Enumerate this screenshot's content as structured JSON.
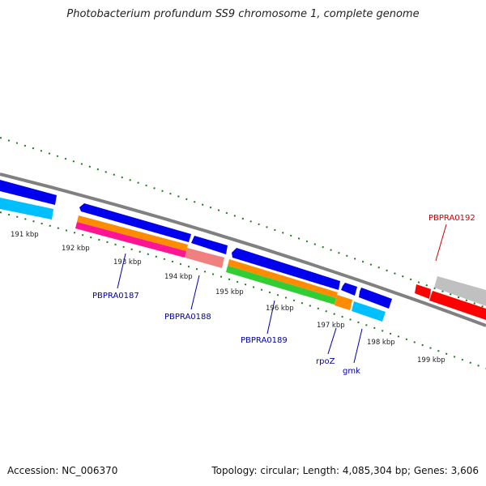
{
  "title": "Photobacterium profundum SS9 chromosome 1, complete genome",
  "footer": {
    "accession": "Accession: NC_006370",
    "summary": "Topology: circular; Length: 4,085,304 bp; Genes: 3,606"
  },
  "ticks": [
    {
      "kbp": 191,
      "label": "191 kbp"
    },
    {
      "kbp": 192,
      "label": "192 kbp"
    },
    {
      "kbp": 193,
      "label": "193 kbp"
    },
    {
      "kbp": 194,
      "label": "194 kbp"
    },
    {
      "kbp": 195,
      "label": "195 kbp"
    },
    {
      "kbp": 196,
      "label": "196 kbp"
    },
    {
      "kbp": 197,
      "label": "197 kbp"
    },
    {
      "kbp": 198,
      "label": "198 kbp"
    },
    {
      "kbp": 199,
      "label": "199 kbp"
    }
  ],
  "gene_labels": [
    {
      "name": "PBPRA0187",
      "color": "#0000aa"
    },
    {
      "name": "PBPRA0188",
      "color": "#0000aa"
    },
    {
      "name": "PBPRA0189",
      "color": "#0000aa"
    },
    {
      "name": "rpoZ",
      "color": "#0000aa"
    },
    {
      "name": "gmk",
      "color": "#0000aa"
    },
    {
      "name": "PBPRA0192",
      "color": "#cc0000"
    }
  ],
  "colors": {
    "backbone": "#808080",
    "tick": "#1f7a1f",
    "blue": "#0000ee",
    "cyan": "#00bfff",
    "orange": "#ff8c00",
    "pink": "#ff1493",
    "salmon": "#f08080",
    "green": "#32cd32",
    "red": "#ff0000",
    "grey": "#c0c0c0"
  }
}
